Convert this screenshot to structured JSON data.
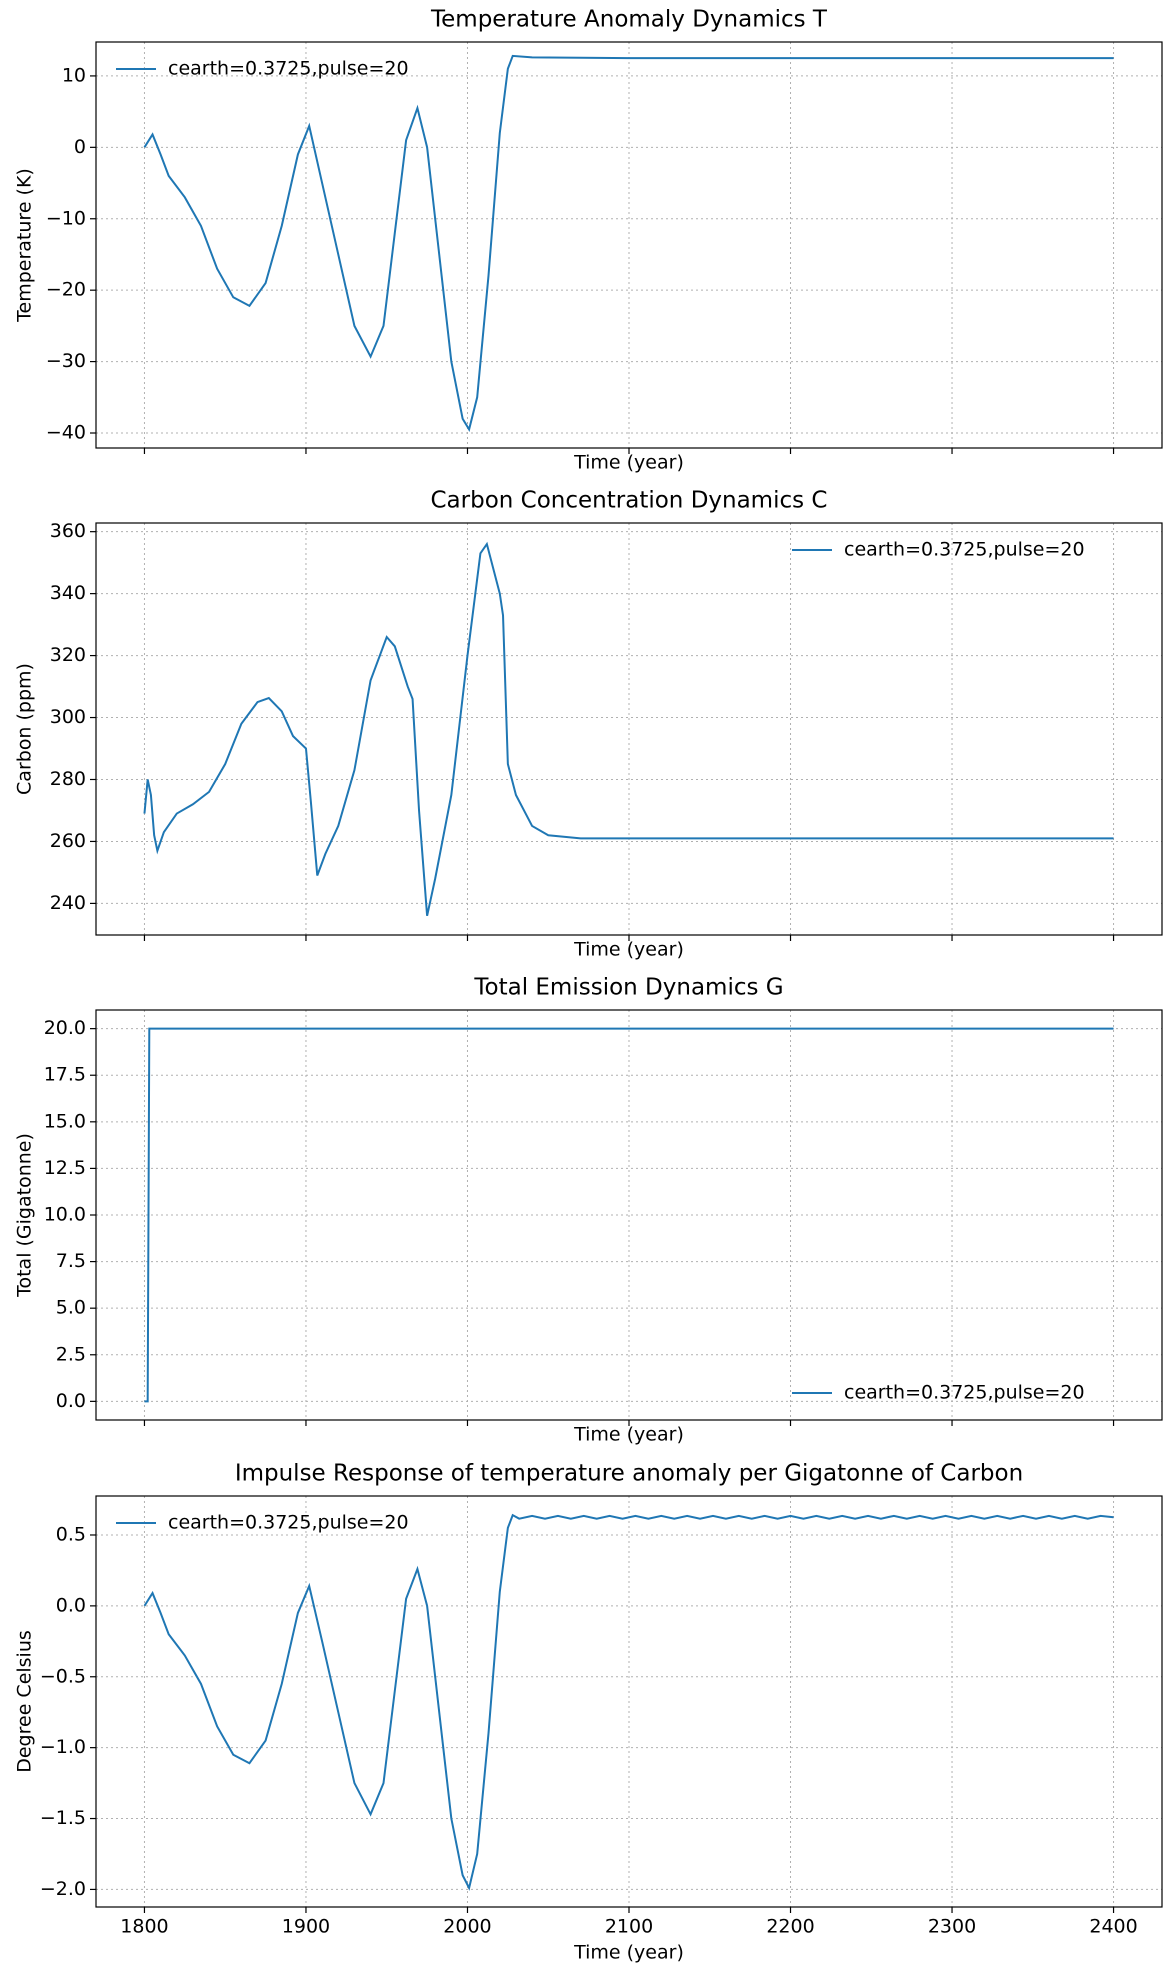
{
  "chart_data": [
    {
      "type": "line",
      "title": "Temperature Anomaly Dynamics T",
      "xlabel": "Time (year)",
      "ylabel": "Temperature (K)",
      "x": [
        1800,
        1805,
        1810,
        1815,
        1825,
        1835,
        1845,
        1855,
        1865,
        1875,
        1885,
        1895,
        1902,
        1910,
        1920,
        1930,
        1940,
        1948,
        1955,
        1962,
        1969,
        1975,
        1982,
        1990,
        1997,
        2001,
        2006,
        2013,
        2020,
        2025,
        2028,
        2040,
        2100,
        2400
      ],
      "series": [
        {
          "name": "cearth=0.3725,pulse=20",
          "color": "#1f77b4",
          "values": [
            0,
            1.8,
            -1,
            -4,
            -7,
            -11,
            -17,
            -21,
            -22.2,
            -19,
            -11,
            -1,
            3,
            -5,
            -15,
            -25,
            -29.3,
            -25,
            -12,
            1,
            5.5,
            0,
            -14,
            -30,
            -38,
            -39.5,
            -35,
            -18,
            2,
            11,
            12.8,
            12.6,
            12.5,
            12.5
          ]
        }
      ],
      "xlim": [
        1770,
        2430
      ],
      "xticks": [
        1800,
        1900,
        2000,
        2100,
        2200,
        2300,
        2400
      ],
      "show_xticklabels": false,
      "ylim": [
        -42.1,
        14.75
      ],
      "yticks": [
        {
          "value": -40,
          "label": "−40"
        },
        {
          "value": -30,
          "label": "−30"
        },
        {
          "value": -20,
          "label": "−20"
        },
        {
          "value": -10,
          "label": "−10"
        },
        0,
        10
      ],
      "grid": true,
      "legend": "upper left"
    },
    {
      "type": "line",
      "title": "Carbon Concentration Dynamics C",
      "xlabel": "Time (year)",
      "ylabel": "Carbon (ppm)",
      "x": [
        1800,
        1802,
        1804,
        1806,
        1808,
        1812,
        1820,
        1830,
        1840,
        1850,
        1860,
        1870,
        1877,
        1885,
        1892,
        1898,
        1900,
        1903,
        1907,
        1912,
        1920,
        1930,
        1940,
        1950,
        1955,
        1963,
        1966,
        1970,
        1975,
        1980,
        1990,
        2000,
        2008,
        2012,
        2020,
        2022,
        2025,
        2030,
        2040,
        2050,
        2070,
        2400
      ],
      "series": [
        {
          "name": "cearth=0.3725,pulse=20",
          "color": "#1f77b4",
          "values": [
            269,
            280,
            275,
            262,
            257,
            263,
            269,
            272,
            276,
            285,
            298,
            305,
            306.3,
            302,
            294,
            291,
            290,
            273,
            249,
            256,
            265,
            283,
            312,
            326,
            323,
            310,
            306,
            270,
            236,
            248,
            275,
            320,
            353,
            356,
            340,
            333,
            285,
            275,
            265,
            262,
            261,
            261
          ]
        }
      ],
      "xlim": [
        1770,
        2430
      ],
      "xticks": [
        1800,
        1900,
        2000,
        2100,
        2200,
        2300,
        2400
      ],
      "show_xticklabels": false,
      "ylim": [
        229.8,
        362.8
      ],
      "yticks": [
        240,
        260,
        280,
        300,
        320,
        340,
        360
      ],
      "grid": true,
      "legend": "upper right"
    },
    {
      "type": "line",
      "title": "Total Emission Dynamics G",
      "xlabel": "Time (year)",
      "ylabel": "Total (Gigatonne)",
      "x": [
        1800,
        1802,
        1803,
        2400
      ],
      "series": [
        {
          "name": "cearth=0.3725,pulse=20",
          "color": "#1f77b4",
          "values": [
            0,
            0,
            20,
            20
          ]
        }
      ],
      "xlim": [
        1770,
        2430
      ],
      "xticks": [
        1800,
        1900,
        2000,
        2100,
        2200,
        2300,
        2400
      ],
      "show_xticklabels": false,
      "ylim": [
        -1.0,
        21.0
      ],
      "yticks": [
        {
          "value": 0,
          "label": "0.0"
        },
        {
          "value": 2.5,
          "label": "2.5"
        },
        {
          "value": 5,
          "label": "5.0"
        },
        {
          "value": 7.5,
          "label": "7.5"
        },
        {
          "value": 10,
          "label": "10.0"
        },
        {
          "value": 12.5,
          "label": "12.5"
        },
        {
          "value": 15,
          "label": "15.0"
        },
        {
          "value": 17.5,
          "label": "17.5"
        },
        {
          "value": 20,
          "label": "20.0"
        }
      ],
      "grid": true,
      "legend": "lower right"
    },
    {
      "type": "line",
      "title": "Impulse Response of temperature anomaly per Gigatonne of Carbon",
      "xlabel": "Time (year)",
      "ylabel": "Degree Celsius",
      "x": [
        1800,
        1805,
        1810,
        1815,
        1825,
        1835,
        1845,
        1855,
        1865,
        1875,
        1885,
        1895,
        1902,
        1910,
        1920,
        1930,
        1940,
        1948,
        1955,
        1962,
        1969,
        1975,
        1982,
        1990,
        1997,
        2001,
        2006,
        2013,
        2020,
        2025,
        2028,
        2032,
        2040,
        2048,
        2056,
        2064,
        2072,
        2080,
        2088,
        2096,
        2104,
        2112,
        2120,
        2128,
        2136,
        2144,
        2152,
        2160,
        2168,
        2176,
        2184,
        2192,
        2200,
        2208,
        2216,
        2224,
        2232,
        2240,
        2248,
        2256,
        2264,
        2272,
        2280,
        2288,
        2296,
        2304,
        2312,
        2320,
        2328,
        2336,
        2344,
        2352,
        2360,
        2368,
        2376,
        2384,
        2392,
        2400
      ],
      "series": [
        {
          "name": "cearth=0.3725,pulse=20",
          "color": "#1f77b4",
          "values": [
            0,
            0.09,
            -0.05,
            -0.2,
            -0.35,
            -0.55,
            -0.85,
            -1.05,
            -1.11,
            -0.95,
            -0.55,
            -0.05,
            0.14,
            -0.25,
            -0.75,
            -1.25,
            -1.47,
            -1.25,
            -0.6,
            0.05,
            0.26,
            0,
            -0.7,
            -1.5,
            -1.9,
            -1.99,
            -1.75,
            -0.9,
            0.1,
            0.55,
            0.64,
            0.615,
            0.635,
            0.615,
            0.635,
            0.615,
            0.635,
            0.615,
            0.635,
            0.615,
            0.635,
            0.615,
            0.635,
            0.615,
            0.635,
            0.615,
            0.635,
            0.615,
            0.635,
            0.615,
            0.635,
            0.615,
            0.635,
            0.615,
            0.635,
            0.615,
            0.635,
            0.615,
            0.635,
            0.615,
            0.635,
            0.615,
            0.635,
            0.615,
            0.635,
            0.615,
            0.635,
            0.615,
            0.635,
            0.615,
            0.635,
            0.615,
            0.635,
            0.615,
            0.635,
            0.615,
            0.635,
            0.625
          ]
        }
      ],
      "xlim": [
        1770,
        2430
      ],
      "xticks": [
        1800,
        1900,
        2000,
        2100,
        2200,
        2300,
        2400
      ],
      "show_xticklabels": true,
      "ylim": [
        -2.124,
        0.775
      ],
      "yticks": [
        {
          "value": -2,
          "label": "−2.0"
        },
        {
          "value": -1.5,
          "label": "−1.5"
        },
        {
          "value": -1,
          "label": "−1.0"
        },
        {
          "value": -0.5,
          "label": "−0.5"
        },
        {
          "value": 0,
          "label": "0.0"
        },
        {
          "value": 0.5,
          "label": "0.5"
        }
      ],
      "grid": true,
      "legend": "upper left"
    }
  ]
}
